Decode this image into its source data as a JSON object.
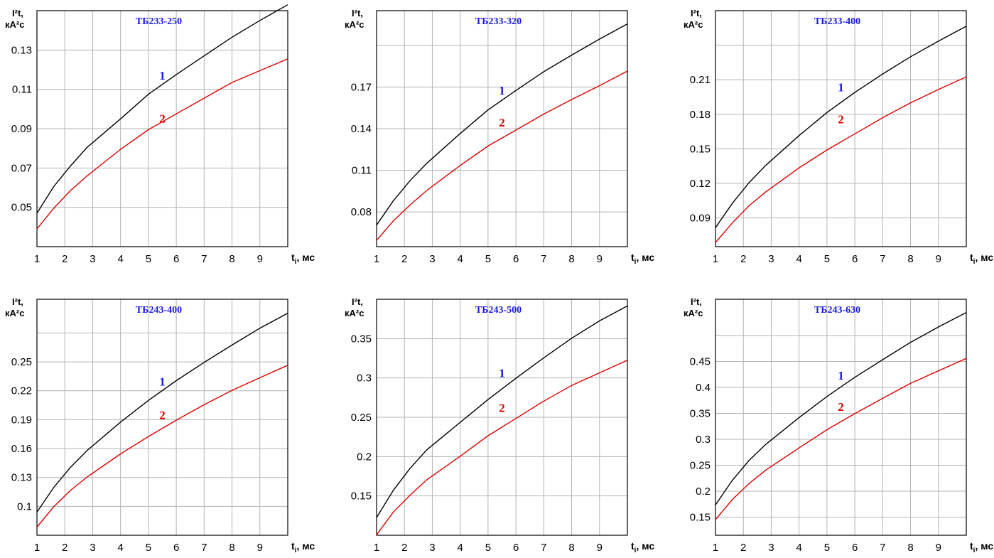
{
  "colors": {
    "curve_1": "#000000",
    "curve_2": "#e00000",
    "title": "#1a1adf",
    "label_1": "#1a1adf",
    "label_2": "#e00000",
    "grid": "#b3b3b3"
  },
  "chart_data": [
    {
      "type": "line",
      "title": "ТБ233-250",
      "ylabel_line1": "I²t,",
      "ylabel_line2": "кА²с",
      "xlabel_main": "t",
      "xlabel_sub": "i",
      "xlabel_tail": ", мс",
      "xlim": [
        1,
        10
      ],
      "ylim": [
        0.03,
        0.15
      ],
      "x_ticks": [
        "1",
        "2",
        "3",
        "4",
        "5",
        "6",
        "7",
        "8",
        "9"
      ],
      "y_ticks": [
        "0.05",
        "0.07",
        "0.09",
        "0.11",
        "0.13"
      ],
      "y_tick_values": [
        0.05,
        0.07,
        0.09,
        0.11,
        0.13
      ],
      "y_grid": [
        0.05,
        0.07,
        0.09,
        0.11,
        0.13
      ],
      "x": [
        1,
        1.6,
        2.2,
        2.8,
        4,
        5,
        6,
        7,
        8,
        9,
        10
      ],
      "series": [
        {
          "name": "1",
          "values": [
            0.047,
            0.0605,
            0.071,
            0.0805,
            0.095,
            0.1075,
            0.1175,
            0.127,
            0.1365,
            0.145,
            0.153
          ]
        },
        {
          "name": "2",
          "values": [
            0.039,
            0.0495,
            0.0585,
            0.066,
            0.0795,
            0.0895,
            0.0975,
            0.1055,
            0.1135,
            0.1195,
            0.1255
          ]
        }
      ],
      "label_pos": {
        "1": [
          5.5,
          0.115
        ],
        "2": [
          5.5,
          0.093
        ]
      }
    },
    {
      "type": "line",
      "title": "ТБ233-320",
      "ylabel_line1": "I²t,",
      "ylabel_line2": "кА²с",
      "xlabel_main": "t",
      "xlabel_sub": "i",
      "xlabel_tail": ", мс",
      "xlim": [
        1,
        10
      ],
      "ylim": [
        0.055,
        0.225
      ],
      "x_ticks": [
        "1",
        "2",
        "3",
        "4",
        "5",
        "6",
        "7",
        "8",
        "9"
      ],
      "y_ticks": [
        "0.08",
        "0.11",
        "0.14",
        "0.17"
      ],
      "y_tick_values": [
        0.08,
        0.11,
        0.14,
        0.17
      ],
      "y_grid": [
        0.08,
        0.11,
        0.14,
        0.17,
        0.2
      ],
      "x": [
        1,
        1.6,
        2.2,
        2.8,
        4,
        5,
        6,
        7,
        8,
        9,
        10
      ],
      "series": [
        {
          "name": "1",
          "values": [
            0.0705,
            0.088,
            0.1025,
            0.115,
            0.1365,
            0.1535,
            0.1675,
            0.181,
            0.193,
            0.2045,
            0.2155
          ]
        },
        {
          "name": "2",
          "values": [
            0.0595,
            0.0735,
            0.085,
            0.0955,
            0.1135,
            0.1275,
            0.139,
            0.1505,
            0.161,
            0.171,
            0.1815
          ]
        }
      ],
      "label_pos": {
        "1": [
          5.5,
          0.1645
        ],
        "2": [
          5.5,
          0.1415
        ]
      }
    },
    {
      "type": "line",
      "title": "ТБ233-400",
      "ylabel_line1": "I²t,",
      "ylabel_line2": "кА²с",
      "xlabel_main": "t",
      "xlabel_sub": "i",
      "xlabel_tail": ", мс",
      "xlim": [
        1,
        10
      ],
      "ylim": [
        0.065,
        0.27
      ],
      "x_ticks": [
        "1",
        "2",
        "3",
        "4",
        "5",
        "6",
        "7",
        "8",
        "9"
      ],
      "y_ticks": [
        "0.09",
        "0.12",
        "0.15",
        "0.18",
        "0.21"
      ],
      "y_tick_values": [
        0.09,
        0.12,
        0.15,
        0.18,
        0.21
      ],
      "y_grid": [
        0.09,
        0.12,
        0.15,
        0.18,
        0.21,
        0.24
      ],
      "x": [
        1,
        1.6,
        2.2,
        2.8,
        4,
        5,
        6,
        7,
        8,
        9,
        10
      ],
      "series": [
        {
          "name": "1",
          "values": [
            0.0815,
            0.1025,
            0.1205,
            0.1355,
            0.1615,
            0.1815,
            0.199,
            0.215,
            0.23,
            0.2435,
            0.2565
          ]
        },
        {
          "name": "2",
          "values": [
            0.0685,
            0.0855,
            0.1005,
            0.1125,
            0.1335,
            0.149,
            0.163,
            0.177,
            0.19,
            0.2015,
            0.2125
          ]
        }
      ],
      "label_pos": {
        "1": [
          5.5,
          0.2
        ],
        "2": [
          5.5,
          0.172
        ]
      }
    },
    {
      "type": "line",
      "title": "ТБ243-400",
      "ylabel_line1": "I²t,",
      "ylabel_line2": "кА²с",
      "xlabel_main": "t",
      "xlabel_sub": "i",
      "xlabel_tail": ", мс",
      "xlim": [
        1,
        10
      ],
      "ylim": [
        0.07,
        0.315
      ],
      "x_ticks": [
        "1",
        "2",
        "3",
        "4",
        "5",
        "6",
        "7",
        "8",
        "9"
      ],
      "y_ticks": [
        "0.1",
        "0.13",
        "0.16",
        "0.19",
        "0.22",
        "0.25"
      ],
      "y_tick_values": [
        0.1,
        0.13,
        0.16,
        0.19,
        0.22,
        0.25
      ],
      "y_grid": [
        0.1,
        0.13,
        0.16,
        0.19,
        0.22,
        0.25,
        0.28
      ],
      "x": [
        1,
        1.6,
        2.2,
        2.8,
        4,
        5,
        6,
        7,
        8,
        9,
        10
      ],
      "series": [
        {
          "name": "1",
          "values": [
            0.094,
            0.1195,
            0.1405,
            0.158,
            0.1875,
            0.21,
            0.2305,
            0.2495,
            0.2675,
            0.285,
            0.3005
          ]
        },
        {
          "name": "2",
          "values": [
            0.0785,
            0.0995,
            0.1165,
            0.1305,
            0.1545,
            0.1725,
            0.1895,
            0.2055,
            0.2205,
            0.2335,
            0.2465
          ]
        }
      ],
      "label_pos": {
        "1": [
          5.5,
          0.2255
        ],
        "2": [
          5.5,
          0.1905
        ]
      }
    },
    {
      "type": "line",
      "title": "ТБ243-500",
      "ylabel_line1": "I²t,",
      "ylabel_line2": "кА²с",
      "xlabel_main": "t",
      "xlabel_sub": "i",
      "xlabel_tail": ", мс",
      "xlim": [
        1,
        10
      ],
      "ylim": [
        0.1,
        0.4
      ],
      "x_ticks": [
        "1",
        "2",
        "3",
        "4",
        "5",
        "6",
        "7",
        "8",
        "9"
      ],
      "y_ticks": [
        "0.15",
        "0.2",
        "0.25",
        "0.3",
        "0.35"
      ],
      "y_tick_values": [
        0.15,
        0.2,
        0.25,
        0.3,
        0.35
      ],
      "y_grid": [
        0.15,
        0.2,
        0.25,
        0.3,
        0.35
      ],
      "x": [
        1,
        1.6,
        2.2,
        2.8,
        4,
        5,
        6,
        7,
        8,
        9,
        10
      ],
      "series": [
        {
          "name": "1",
          "values": [
            0.1225,
            0.157,
            0.185,
            0.2085,
            0.2435,
            0.2725,
            0.2995,
            0.3255,
            0.3505,
            0.3725,
            0.3915
          ]
        },
        {
          "name": "2",
          "values": [
            0.1005,
            0.1295,
            0.151,
            0.1705,
            0.2005,
            0.2265,
            0.2485,
            0.2705,
            0.2905,
            0.3065,
            0.3225
          ]
        }
      ],
      "label_pos": {
        "1": [
          5.5,
          0.301
        ],
        "2": [
          5.5,
          0.257
        ]
      }
    },
    {
      "type": "line",
      "title": "ТБ243-630",
      "ylabel_line1": "I²t,",
      "ylabel_line2": "кА²с",
      "xlabel_main": "t",
      "xlabel_sub": "i",
      "xlabel_tail": ", мс",
      "xlim": [
        1,
        10
      ],
      "ylim": [
        0.115,
        0.57
      ],
      "x_ticks": [
        "1",
        "2",
        "3",
        "4",
        "5",
        "6",
        "7",
        "8",
        "9"
      ],
      "y_ticks": [
        "0.15",
        "0.2",
        "0.25",
        "0.3",
        "0.35",
        "0.4",
        "0.45"
      ],
      "y_tick_values": [
        0.15,
        0.2,
        0.25,
        0.3,
        0.35,
        0.4,
        0.45
      ],
      "y_grid": [
        0.15,
        0.2,
        0.25,
        0.3,
        0.35,
        0.4,
        0.45,
        0.5
      ],
      "x": [
        1,
        1.6,
        2.2,
        2.8,
        4,
        5,
        6,
        7,
        8,
        9,
        10
      ],
      "series": [
        {
          "name": "1",
          "values": [
            0.1735,
            0.2205,
            0.259,
            0.29,
            0.342,
            0.3825,
            0.4195,
            0.4535,
            0.487,
            0.5165,
            0.5445
          ]
        },
        {
          "name": "2",
          "values": [
            0.145,
            0.1835,
            0.2145,
            0.2405,
            0.2835,
            0.3185,
            0.3495,
            0.379,
            0.408,
            0.432,
            0.456
          ]
        }
      ],
      "label_pos": {
        "1": [
          5.5,
          0.415
        ],
        "2": [
          5.5,
          0.355
        ]
      }
    }
  ]
}
